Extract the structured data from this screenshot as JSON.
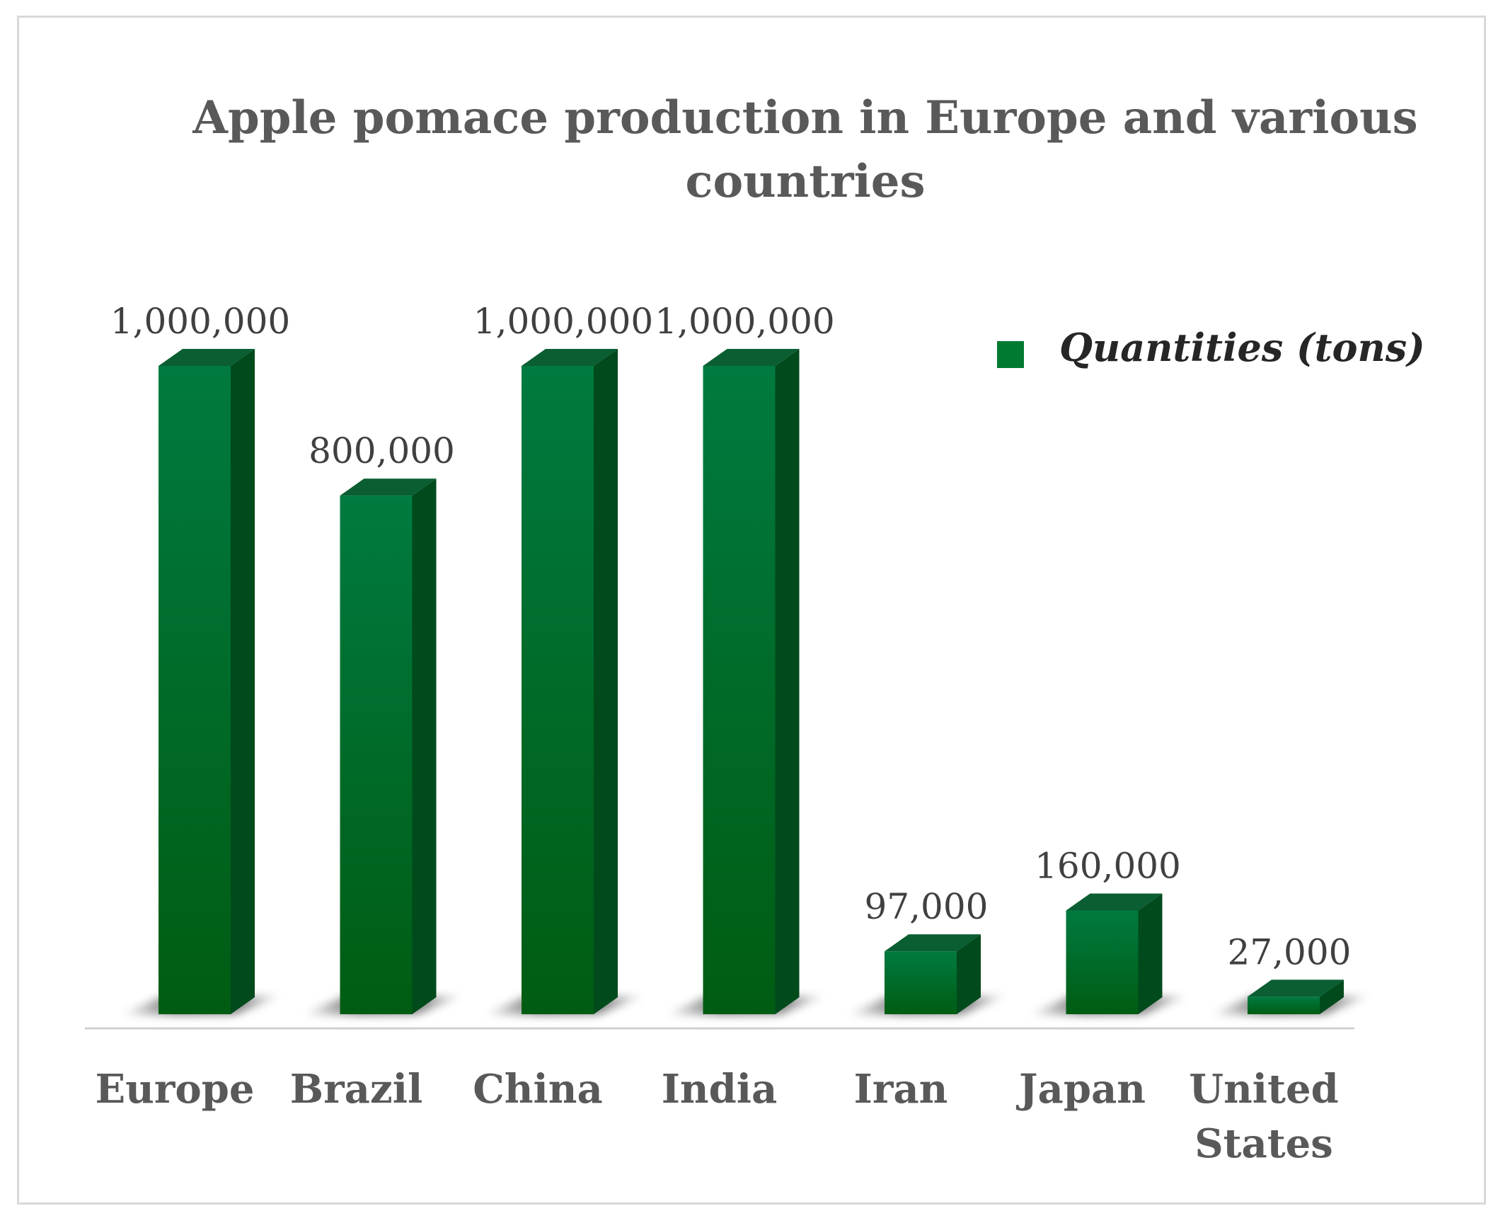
{
  "chart_data": {
    "type": "bar",
    "title_lines": [
      "Apple pomace production in Europe and various",
      "countries"
    ],
    "categories": [
      {
        "lines": [
          "Europe"
        ]
      },
      {
        "lines": [
          "Brazil"
        ]
      },
      {
        "lines": [
          "China"
        ]
      },
      {
        "lines": [
          "India"
        ]
      },
      {
        "lines": [
          "Iran"
        ]
      },
      {
        "lines": [
          "Japan"
        ]
      },
      {
        "lines": [
          "United",
          "States"
        ]
      }
    ],
    "series": [
      {
        "name": "Quantities (tons)",
        "values": [
          1000000,
          800000,
          1000000,
          1000000,
          97000,
          160000,
          27000
        ],
        "data_labels": [
          "1,000,000",
          "800,000",
          "1,000,000",
          "1,000,000",
          "97,000",
          "160,000",
          "27,000"
        ],
        "color": "#00742f"
      }
    ],
    "ylim": [
      0,
      1000000
    ],
    "grid": false,
    "legend": "top-right",
    "style": "3d-column"
  },
  "colors": {
    "bar_front_top": "#007a40",
    "bar_front_bottom": "#005c12",
    "bar_side": "#004a1c",
    "bar_top": "#0a5e32",
    "axis": "#d0d0d0",
    "legend_swatch": "#007a30"
  }
}
